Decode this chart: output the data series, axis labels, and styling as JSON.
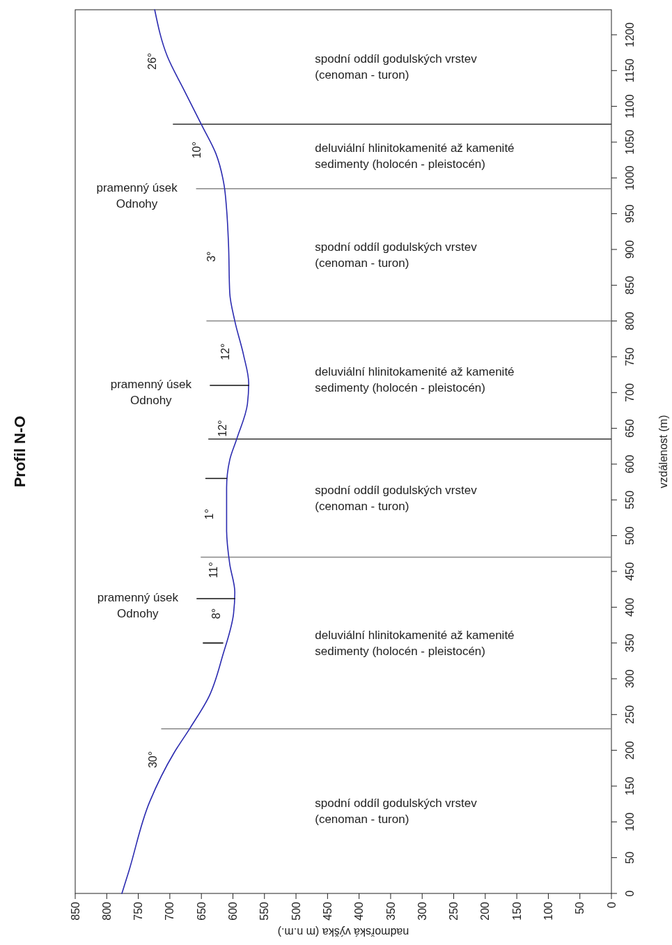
{
  "chart_data": {
    "type": "line",
    "title": "Profil N-O",
    "xlabel": "nadmořská výška (m n.m.)",
    "ylabel": "vzdálenost (m)",
    "series": [
      {
        "color": "#2b2bb0",
        "x": [
          776,
          765,
          732,
          693,
          668,
          638,
          616,
          599,
          597,
          605,
          610,
          610,
          605,
          594,
          577,
          575,
          583,
          597,
          605,
          607,
          610,
          614,
          627,
          649,
          677,
          704,
          724
        ],
        "values": [
          0,
          31,
          128,
          197,
          231,
          275,
          333,
          391,
          421,
          460,
          508,
          567,
          606,
          635,
          684,
          713,
          752,
          800,
          839,
          908,
          956,
          990,
          1034,
          1073,
          1122,
          1170,
          1235
        ]
      },
      {
        "color": "#111111",
        "x": [
          575,
          636,
          null,
          610,
          643,
          null,
          597,
          657,
          null,
          616,
          647
        ],
        "values": [
          710,
          710,
          null,
          580,
          580,
          null,
          412,
          412,
          null,
          350,
          350
        ]
      }
    ],
    "xlim": [
      850,
      0
    ],
    "ylim": [
      0,
      1235
    ],
    "xticks": [
      0,
      50,
      100,
      150,
      200,
      250,
      300,
      350,
      400,
      450,
      500,
      550,
      600,
      650,
      700,
      750,
      800,
      850
    ],
    "yticks": [
      0,
      50,
      100,
      150,
      200,
      250,
      300,
      350,
      400,
      450,
      500,
      550,
      600,
      650,
      700,
      750,
      800,
      850,
      900,
      950,
      1000,
      1050,
      1100,
      1150,
      1200
    ],
    "grid": false,
    "ref_lines": [
      {
        "axis": "y",
        "value": 1075,
        "label": null,
        "color": "#333333"
      },
      {
        "axis": "y",
        "value": 985,
        "label": "pramenný úsek Odnohy",
        "color": "#888888"
      },
      {
        "axis": "y",
        "value": 800,
        "label": null,
        "color": "#888888"
      },
      {
        "axis": "y",
        "value": 635,
        "label": null,
        "color": "#333333"
      },
      {
        "axis": "y",
        "value": 470,
        "label": null,
        "color": "#888888"
      },
      {
        "axis": "y",
        "value": 230,
        "label": null,
        "color": "#888888"
      }
    ],
    "annotations": [
      {
        "text": "26°",
        "x": 700,
        "y": 1163
      },
      {
        "text": "10°",
        "x": 630,
        "y": 1039
      },
      {
        "text": "3°",
        "x": 607,
        "y": 890
      },
      {
        "text": "12°",
        "x": 585,
        "y": 757
      },
      {
        "text": "12°",
        "x": 589,
        "y": 650
      },
      {
        "text": "1°",
        "x": 610,
        "y": 530
      },
      {
        "text": "11°",
        "x": 603,
        "y": 452
      },
      {
        "text": "8°",
        "x": 599,
        "y": 391
      },
      {
        "text": "30°",
        "x": 699,
        "y": 187
      },
      {
        "text": "pramenný úsek Odnohy",
        "x": 636,
        "y": 710
      },
      {
        "text": "pramenný úsek Odnohy",
        "x": 657,
        "y": 412
      },
      "spodní oddíl godulských vrstev (cenoman - turon)",
      "deluviální hlinitokamenité až kamenité sedimenty (holocén - pleistocén)",
      "spodní oddíl godulských vrstev (cenoman - turon)",
      "deluviální hlinitokamenité až kamenité sedimenty (holocén - pleistocén)",
      "spodní oddíl godulských vrstev (cenoman - turon)",
      "deluviální hlinitokamenité až kamenité sedimenty (holocén - pleistocén)",
      "spodní oddíl godulských vrstev (cenoman - turon)"
    ]
  }
}
